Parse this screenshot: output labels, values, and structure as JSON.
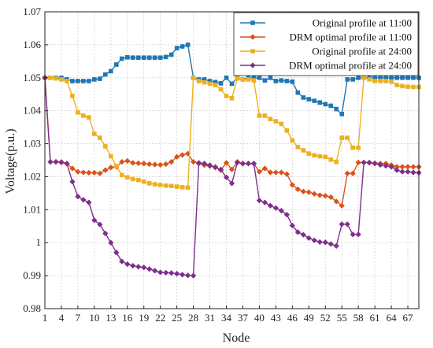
{
  "chart_data": {
    "type": "line",
    "xlabel": "Node",
    "ylabel": "Voltage(p.u.)",
    "ylim": [
      0.98,
      1.07
    ],
    "yticks": [
      0.98,
      0.99,
      1,
      1.01,
      1.02,
      1.03,
      1.04,
      1.05,
      1.06,
      1.07
    ],
    "xlim": [
      1,
      69
    ],
    "xticks": [
      1,
      4,
      7,
      10,
      13,
      16,
      19,
      22,
      25,
      28,
      31,
      34,
      37,
      40,
      43,
      46,
      49,
      52,
      55,
      58,
      61,
      64,
      67
    ],
    "grid": true,
    "legend_position": "top-right",
    "x": [
      1,
      2,
      3,
      4,
      5,
      6,
      7,
      8,
      9,
      10,
      11,
      12,
      13,
      14,
      15,
      16,
      17,
      18,
      19,
      20,
      21,
      22,
      23,
      24,
      25,
      26,
      27,
      28,
      29,
      30,
      31,
      32,
      33,
      34,
      35,
      36,
      37,
      38,
      39,
      40,
      41,
      42,
      43,
      44,
      45,
      46,
      47,
      48,
      49,
      50,
      51,
      52,
      53,
      54,
      55,
      56,
      57,
      58,
      59,
      60,
      61,
      62,
      63,
      64,
      65,
      66,
      67,
      68,
      69
    ],
    "series": [
      {
        "name": "Original profile at 11:00",
        "color": "#1f77b4",
        "marker": "square",
        "values": [
          1.05,
          1.05,
          1.05,
          1.05,
          1.0495,
          1.049,
          1.049,
          1.049,
          1.049,
          1.0495,
          1.0497,
          1.051,
          1.052,
          1.054,
          1.0558,
          1.0562,
          1.0561,
          1.0561,
          1.0561,
          1.0561,
          1.0561,
          1.0561,
          1.0563,
          1.057,
          1.059,
          1.0595,
          1.06,
          1.05,
          1.0495,
          1.0495,
          1.049,
          1.0487,
          1.0483,
          1.05,
          1.0482,
          1.05,
          1.0495,
          1.05,
          1.05,
          1.05,
          1.0492,
          1.05,
          1.049,
          1.0492,
          1.049,
          1.0488,
          1.0455,
          1.044,
          1.0435,
          1.043,
          1.0425,
          1.042,
          1.0415,
          1.0405,
          1.039,
          1.0495,
          1.0495,
          1.05,
          1.05,
          1.05,
          1.05,
          1.05,
          1.05,
          1.05,
          1.05,
          1.05,
          1.05,
          1.05,
          1.05
        ]
      },
      {
        "name": "DRM optimal profile at 11:00",
        "color": "#d95319",
        "marker": "diamond",
        "values": [
          1.05,
          1.0245,
          1.0245,
          1.0245,
          1.024,
          1.0225,
          1.0215,
          1.0213,
          1.0212,
          1.0212,
          1.021,
          1.022,
          1.0228,
          1.023,
          1.0245,
          1.0248,
          1.0242,
          1.0241,
          1.024,
          1.0238,
          1.0237,
          1.0236,
          1.0238,
          1.0245,
          1.026,
          1.0266,
          1.027,
          1.0245,
          1.024,
          1.0235,
          1.0232,
          1.023,
          1.022,
          1.0242,
          1.0222,
          1.0245,
          1.024,
          1.024,
          1.024,
          1.0215,
          1.0225,
          1.0213,
          1.0213,
          1.0213,
          1.0208,
          1.0175,
          1.0162,
          1.0155,
          1.0153,
          1.0148,
          1.0144,
          1.0142,
          1.0138,
          1.0125,
          1.0112,
          1.021,
          1.021,
          1.0243,
          1.0243,
          1.0242,
          1.0241,
          1.024,
          1.024,
          1.0235,
          1.023,
          1.023,
          1.023,
          1.023,
          1.023
        ]
      },
      {
        "name": "Original profile at 24:00",
        "color": "#edb120",
        "marker": "square",
        "values": [
          1.05,
          1.05,
          1.0498,
          1.0495,
          1.049,
          1.0445,
          1.0395,
          1.0385,
          1.038,
          1.033,
          1.0318,
          1.0292,
          1.0262,
          1.0232,
          1.0205,
          1.0198,
          1.0193,
          1.019,
          1.0185,
          1.018,
          1.0177,
          1.0175,
          1.0173,
          1.0172,
          1.017,
          1.0168,
          1.0167,
          1.05,
          1.049,
          1.0486,
          1.0482,
          1.0478,
          1.0465,
          1.0445,
          1.0438,
          1.0498,
          1.0495,
          1.0495,
          1.0492,
          1.0385,
          1.0385,
          1.0375,
          1.0368,
          1.036,
          1.034,
          1.031,
          1.029,
          1.028,
          1.027,
          1.0265,
          1.0262,
          1.026,
          1.0252,
          1.0245,
          1.0318,
          1.0318,
          1.0288,
          1.0288,
          1.05,
          1.0495,
          1.049,
          1.049,
          1.049,
          1.0488,
          1.0478,
          1.0475,
          1.0473,
          1.0472,
          1.0472
        ]
      },
      {
        "name": "DRM optimal profile at 24:00",
        "color": "#7e2f8e",
        "marker": "diamond",
        "values": [
          1.05,
          1.0245,
          1.0245,
          1.0243,
          1.024,
          1.0185,
          1.014,
          1.013,
          1.0122,
          1.0068,
          1.0055,
          1.0028,
          1.0,
          0.997,
          0.9943,
          0.9935,
          0.993,
          0.9927,
          0.9925,
          0.992,
          0.9915,
          0.991,
          0.9909,
          0.9908,
          0.9906,
          0.9903,
          0.9901,
          0.99,
          1.0242,
          1.024,
          1.0235,
          1.0228,
          1.0222,
          1.0198,
          1.018,
          1.0243,
          1.024,
          1.024,
          1.024,
          1.0128,
          1.0122,
          1.0112,
          1.0105,
          1.0097,
          1.0085,
          1.0052,
          1.0032,
          1.0024,
          1.0014,
          1.0007,
          1.0002,
          1.0001,
          0.9996,
          0.999,
          1.0056,
          1.0056,
          1.0025,
          1.0025,
          1.0243,
          1.0243,
          1.024,
          1.0236,
          1.0233,
          1.023,
          1.022,
          1.0215,
          1.0215,
          1.0213,
          1.0212
        ]
      }
    ]
  }
}
